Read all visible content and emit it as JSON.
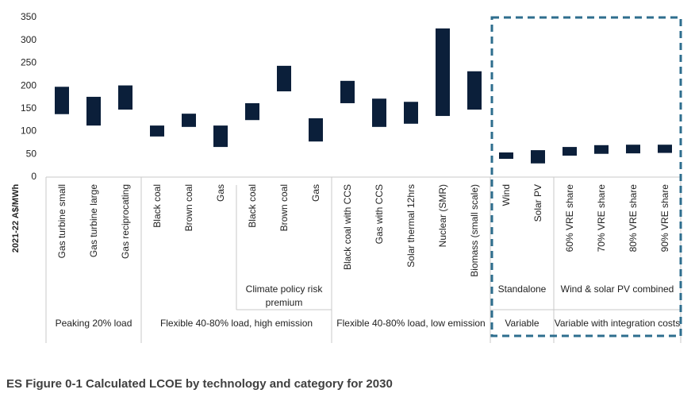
{
  "chart_data": {
    "type": "range-bar",
    "caption": "ES Figure 0-1 Calculated LCOE by technology and category for 2030",
    "y_label": "2021-22 A$/MWh",
    "categories": [
      "Gas turbine small",
      "Gas turbine large",
      "Gas reciprocating",
      "Black coal",
      "Brown coal",
      "Gas",
      "Black coal",
      "Brown coal",
      "Gas",
      "Black coal with CCS",
      "Gas with CCS",
      "Solar thermal 12hrs",
      "Nuclear (SMR)",
      "Biomass (small scale)",
      "Wind",
      "Solar PV",
      "60% VRE share",
      "70% VRE share",
      "80% VRE share",
      "90% VRE share"
    ],
    "low": [
      138,
      113,
      148,
      89,
      110,
      66,
      125,
      188,
      78,
      162,
      110,
      117,
      134,
      148,
      40,
      30,
      47,
      51,
      52,
      53
    ],
    "high": [
      198,
      176,
      201,
      113,
      139,
      113,
      162,
      244,
      129,
      211,
      172,
      165,
      326,
      232,
      54,
      59,
      66,
      70,
      71,
      71
    ],
    "color": "#0b1f3a",
    "subgroups": [
      "Climate policy risk premium",
      "Standalone",
      "Wind & solar PV combined"
    ],
    "groups": [
      "Peaking 20% load",
      "Flexible 40-80% load, high emission",
      "Flexible 40-80% load, low emission",
      "Variable",
      "Variable with integration costs"
    ],
    "ylim": [
      0,
      350
    ],
    "yticks": [
      0,
      50,
      100,
      150,
      200,
      250,
      300,
      350
    ]
  }
}
